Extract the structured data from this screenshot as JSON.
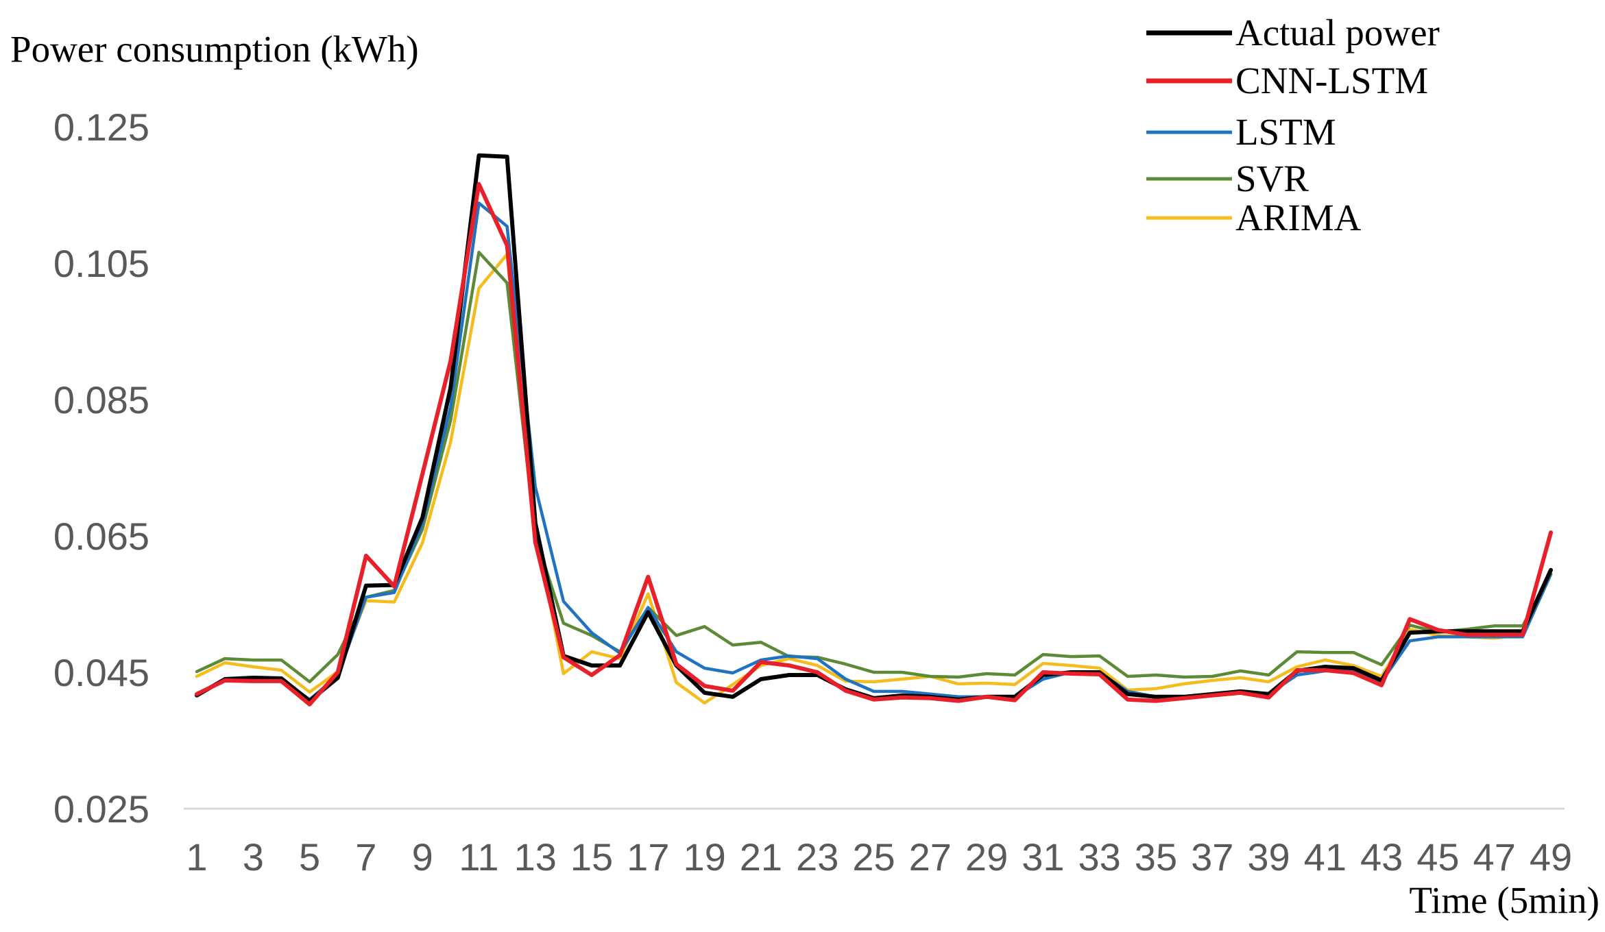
{
  "chart_data": {
    "type": "line",
    "ylabel": "Power consumption (kWh)",
    "xlabel": "Time (5min)",
    "ylim": [
      0.025,
      0.125
    ],
    "yticks": [
      "0.025",
      "0.045",
      "0.065",
      "0.085",
      "0.105",
      "0.125"
    ],
    "xticks": [
      1,
      3,
      5,
      7,
      9,
      11,
      13,
      15,
      17,
      19,
      21,
      23,
      25,
      27,
      29,
      31,
      33,
      35,
      37,
      39,
      41,
      43,
      45,
      47,
      49
    ],
    "x": [
      1,
      2,
      3,
      4,
      5,
      6,
      7,
      8,
      9,
      10,
      11,
      12,
      13,
      14,
      15,
      16,
      17,
      18,
      19,
      20,
      21,
      22,
      23,
      24,
      25,
      26,
      27,
      28,
      29,
      30,
      31,
      32,
      33,
      34,
      35,
      36,
      37,
      38,
      39,
      40,
      41,
      42,
      43,
      44,
      45,
      46,
      47,
      48,
      49
    ],
    "grid": false,
    "legend_position": "top-right",
    "series": [
      {
        "name": "Actual power",
        "color": "#000000",
        "values": [
          0.0416,
          0.044,
          0.0442,
          0.0441,
          0.0408,
          0.0442,
          0.0577,
          0.0578,
          0.0677,
          0.0868,
          0.1208,
          0.1206,
          0.0669,
          0.0474,
          0.046,
          0.046,
          0.0538,
          0.046,
          0.042,
          0.0414,
          0.044,
          0.0446,
          0.0446,
          0.0425,
          0.0412,
          0.0416,
          0.0414,
          0.041,
          0.0414,
          0.0414,
          0.0446,
          0.045,
          0.045,
          0.0418,
          0.0414,
          0.0414,
          0.0418,
          0.0422,
          0.0418,
          0.0452,
          0.0458,
          0.0456,
          0.0438,
          0.0508,
          0.051,
          0.051,
          0.051,
          0.051,
          0.06
        ]
      },
      {
        "name": "CNN-LSTM",
        "color": "#e8202a",
        "values": [
          0.0418,
          0.0438,
          0.0437,
          0.0437,
          0.0403,
          0.045,
          0.0621,
          0.0576,
          0.0741,
          0.0907,
          0.1166,
          0.1076,
          0.0641,
          0.0472,
          0.0446,
          0.0475,
          0.059,
          0.0462,
          0.043,
          0.0423,
          0.0465,
          0.046,
          0.045,
          0.0423,
          0.041,
          0.0413,
          0.0412,
          0.0408,
          0.0414,
          0.0409,
          0.045,
          0.0448,
          0.0447,
          0.041,
          0.0408,
          0.0412,
          0.0416,
          0.042,
          0.0413,
          0.0453,
          0.0453,
          0.0449,
          0.0431,
          0.0528,
          0.0512,
          0.0505,
          0.0505,
          0.0505,
          0.0655
        ]
      },
      {
        "name": "LSTM",
        "color": "#1f73c1",
        "values": [
          0.0418,
          0.044,
          0.044,
          0.044,
          0.041,
          0.0445,
          0.056,
          0.0567,
          0.0668,
          0.084,
          0.1138,
          0.1104,
          0.0722,
          0.0554,
          0.0508,
          0.0478,
          0.0545,
          0.048,
          0.0456,
          0.0449,
          0.0468,
          0.0474,
          0.047,
          0.044,
          0.0422,
          0.0422,
          0.0418,
          0.0414,
          0.0414,
          0.0414,
          0.044,
          0.045,
          0.045,
          0.0422,
          0.0414,
          0.0414,
          0.0418,
          0.0422,
          0.0418,
          0.0446,
          0.0452,
          0.0452,
          0.0436,
          0.0496,
          0.0502,
          0.0502,
          0.0502,
          0.0502,
          0.0594
        ]
      },
      {
        "name": "SVR",
        "color": "#5c8a36",
        "values": [
          0.0451,
          0.047,
          0.0468,
          0.0468,
          0.0436,
          0.0476,
          0.056,
          0.057,
          0.066,
          0.082,
          0.1066,
          0.1021,
          0.0649,
          0.0522,
          0.0504,
          0.048,
          0.0545,
          0.0504,
          0.0517,
          0.049,
          0.0494,
          0.0473,
          0.0472,
          0.0462,
          0.045,
          0.045,
          0.0444,
          0.0443,
          0.0448,
          0.0446,
          0.0476,
          0.0473,
          0.0474,
          0.0444,
          0.0446,
          0.0443,
          0.0444,
          0.0452,
          0.0446,
          0.048,
          0.0479,
          0.0479,
          0.0461,
          0.0519,
          0.0509,
          0.0513,
          0.0518,
          0.0518,
          0.0594
        ]
      },
      {
        "name": "ARIMA",
        "color": "#f4bc1c",
        "values": [
          0.0444,
          0.0464,
          0.0458,
          0.0453,
          0.0421,
          0.0451,
          0.0555,
          0.0553,
          0.064,
          0.0788,
          0.1013,
          0.1063,
          0.0662,
          0.0448,
          0.048,
          0.047,
          0.0565,
          0.0435,
          0.0405,
          0.0432,
          0.046,
          0.047,
          0.046,
          0.0437,
          0.0436,
          0.044,
          0.0444,
          0.0433,
          0.0434,
          0.0432,
          0.0463,
          0.046,
          0.0456,
          0.0424,
          0.0426,
          0.0433,
          0.0438,
          0.0442,
          0.0436,
          0.0458,
          0.0468,
          0.046,
          0.0444,
          0.0513,
          0.0504,
          0.0502,
          0.05,
          0.0505,
          0.0593
        ]
      }
    ]
  }
}
